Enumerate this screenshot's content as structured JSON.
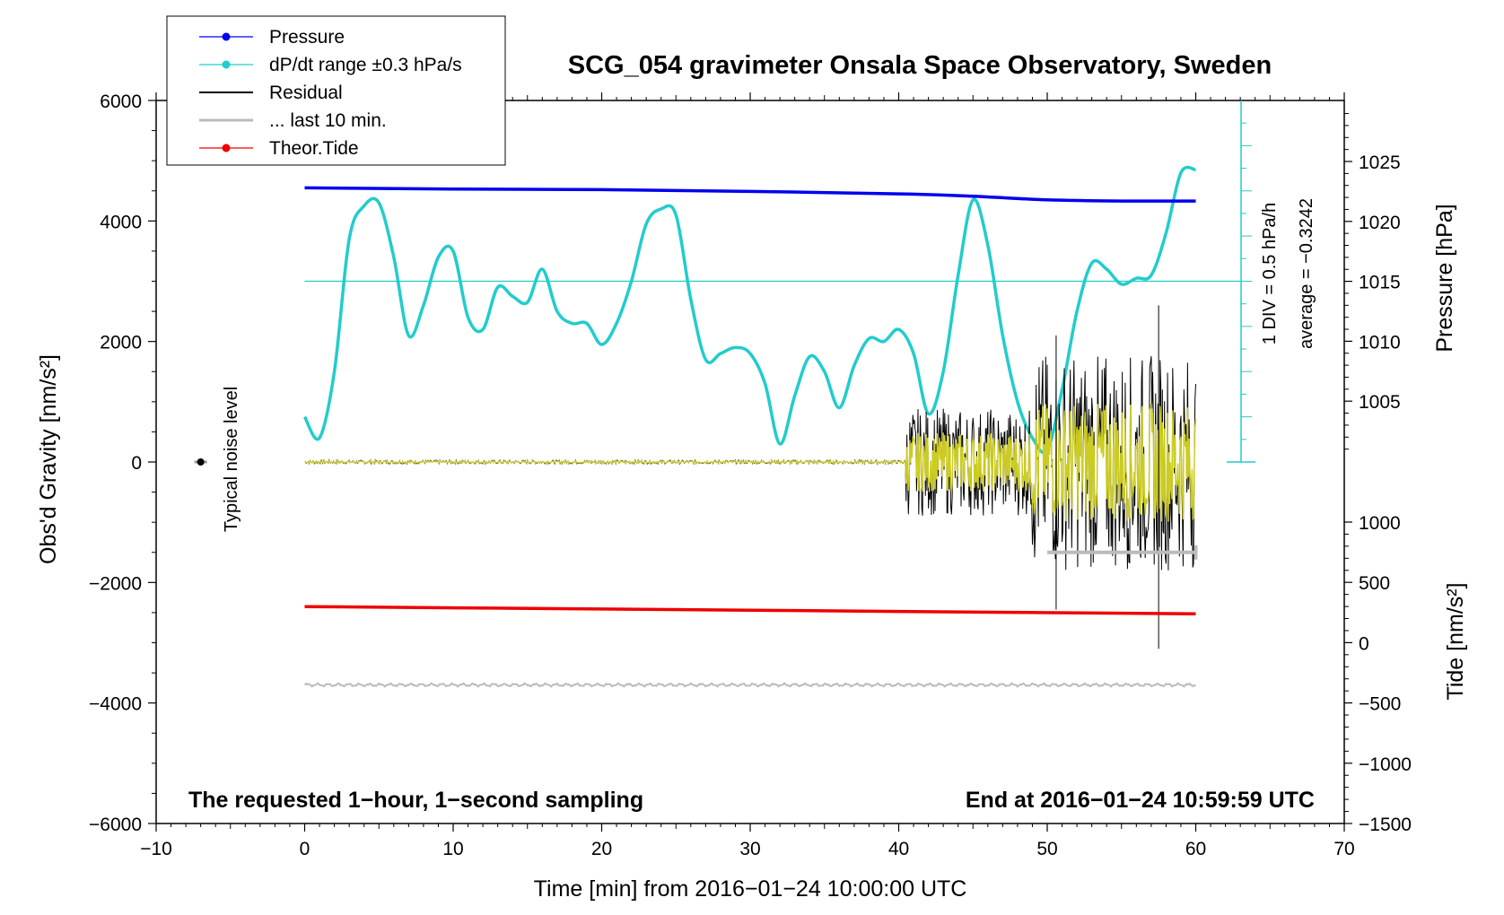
{
  "chart_data": {
    "type": "line",
    "title": "SCG_054 gravimeter Onsala Space Observatory, Sweden",
    "xlabel": "Time [min] from 2016−01−24 10:00:00 UTC",
    "ylabel_left": "Obs'd Gravity [nm/s²]",
    "ylabel_right_top": "Pressure [hPa]",
    "ylabel_right_bottom": "Tide [nm/s²]",
    "xlim": [
      -10,
      70
    ],
    "ylim": [
      -6000,
      6000
    ],
    "pressure_lim": [
      1000,
      1030
    ],
    "tide_lim": [
      -1500,
      1000
    ],
    "x_ticks": [
      "−10",
      "0",
      "10",
      "20",
      "30",
      "40",
      "50",
      "60",
      "70"
    ],
    "y_ticks_left": [
      "−6000",
      "−4000",
      "−2000",
      "0",
      "2000",
      "4000",
      "6000"
    ],
    "pressure_ticks": [
      "1005",
      "1010",
      "1015",
      "1020",
      "1025"
    ],
    "tide_ticks": [
      "−1500",
      "−1000",
      "−500",
      "0",
      "500",
      "1000"
    ],
    "footer_left": "The requested 1−hour, 1−second sampling",
    "footer_right": "End at 2016−01−24 10:59:59 UTC",
    "noise_label": "Typical noise level",
    "div_label": "1 DIV = 0.5 hPa/h",
    "average_label": "average = −0.3242",
    "legend": [
      {
        "label": "Pressure",
        "color": "#0000ee",
        "marker": true
      },
      {
        "label": "dP/dt range ±0.3 hPa/s",
        "color": "#22cccc",
        "marker": true
      },
      {
        "label": "Residual",
        "color": "#000000",
        "marker": false
      },
      {
        "label": "... last 10 min.",
        "color": "#bbbbbb",
        "marker": false
      },
      {
        "label": "Theor.Tide",
        "color": "#ee0000",
        "marker": true
      }
    ],
    "series": [
      {
        "name": "Pressure",
        "color": "#0000ee",
        "x": [
          0,
          10,
          20,
          30,
          40,
          45,
          50,
          55,
          60
        ],
        "y": [
          1022.8,
          1022.7,
          1022.65,
          1022.5,
          1022.3,
          1022.1,
          1021.8,
          1021.7,
          1021.7
        ]
      },
      {
        "name": "dP/dt range ±0.3 hPa/s",
        "color": "#22cccc",
        "x": [
          0,
          1,
          2,
          3,
          4,
          5,
          6,
          7,
          8,
          9,
          10,
          11,
          12,
          13,
          14,
          15,
          16,
          17,
          18,
          19,
          20,
          21,
          22,
          23,
          24,
          25,
          26,
          27,
          28,
          29,
          30,
          31,
          32,
          33,
          34,
          35,
          36,
          37,
          38,
          39,
          40,
          41,
          42,
          43,
          44,
          45,
          46,
          47,
          48,
          49,
          50,
          51,
          52,
          53,
          54,
          55,
          56,
          57,
          58,
          59,
          60
        ],
        "y": [
          750,
          400,
          1500,
          3700,
          4250,
          4300,
          3400,
          2100,
          2600,
          3400,
          3500,
          2400,
          2200,
          2900,
          2750,
          2650,
          3200,
          2500,
          2300,
          2300,
          1950,
          2300,
          3000,
          3950,
          4200,
          4100,
          2700,
          1700,
          1800,
          1900,
          1800,
          1300,
          300,
          1100,
          1750,
          1500,
          900,
          1600,
          2050,
          2000,
          2200,
          1800,
          800,
          1500,
          3100,
          4350,
          3600,
          2100,
          1000,
          400,
          200,
          1200,
          2500,
          3300,
          3200,
          2950,
          3050,
          3100,
          3800,
          4800,
          4850
        ]
      },
      {
        "name": "Theor.Tide",
        "color": "#ee0000",
        "x": [
          0,
          20,
          40,
          60
        ],
        "y": [
          -2400,
          -2440,
          -2480,
          -2520
        ]
      }
    ],
    "residual_envelope": {
      "quiet_until_min": 40.5,
      "amplitude_min": [
        -3100,
        2600
      ]
    },
    "noise_level": {
      "x": -7,
      "y": 0
    },
    "bottom_trace_y": -3700,
    "last10_bar": {
      "x": [
        50,
        60
      ],
      "y": -1500
    },
    "ref_line": {
      "x": [
        0,
        63
      ],
      "y": 3000
    }
  }
}
